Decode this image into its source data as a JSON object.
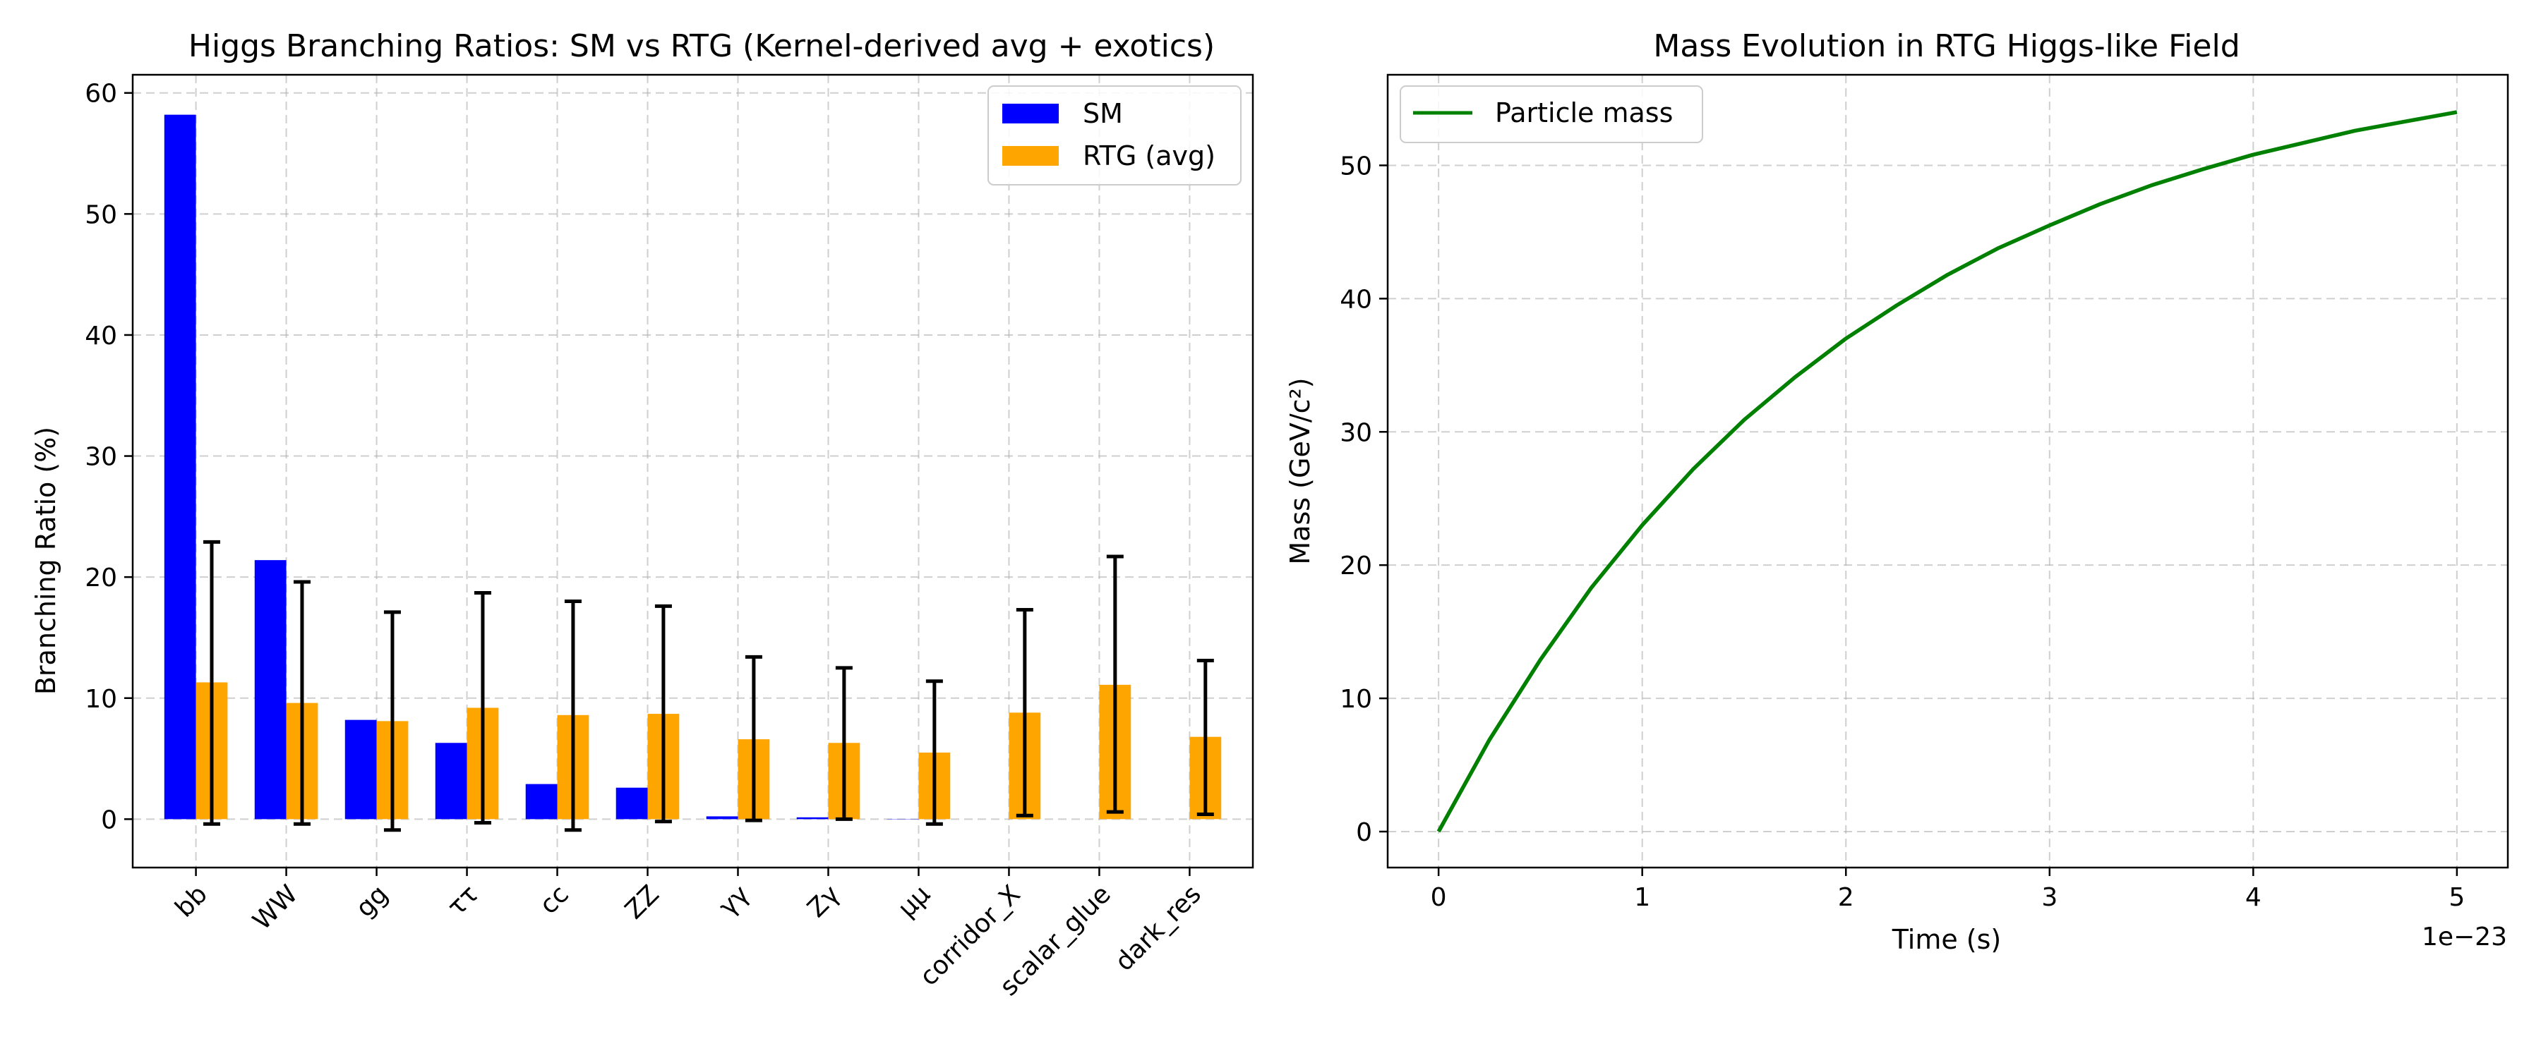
{
  "chart_data": [
    {
      "type": "bar",
      "title": "Higgs Branching Ratios: SM vs RTG (Kernel-derived avg + exotics)",
      "xlabel": "",
      "ylabel": "Branching Ratio (%)",
      "ylim": [
        -4,
        61.5
      ],
      "yticks": [
        0,
        10,
        20,
        30,
        40,
        50,
        60
      ],
      "categories": [
        "bb",
        "WW",
        "gg",
        "ττ",
        "cc",
        "ZZ",
        "γγ",
        "Zγ",
        "μμ",
        "corridor_X",
        "scalar_glue",
        "dark_res"
      ],
      "series": [
        {
          "name": "SM",
          "color": "#0000ff",
          "values": [
            58.2,
            21.4,
            8.2,
            6.3,
            2.9,
            2.6,
            0.23,
            0.15,
            0.02,
            0,
            0,
            0
          ]
        },
        {
          "name": "RTG (avg)",
          "color": "#ffa500",
          "values": [
            11.3,
            9.6,
            8.1,
            9.2,
            8.6,
            8.7,
            6.6,
            6.3,
            5.5,
            8.8,
            11.1,
            6.8
          ],
          "error_low": [
            -0.4,
            -0.4,
            -0.9,
            -0.3,
            -0.9,
            -0.2,
            -0.1,
            0.0,
            -0.4,
            0.3,
            0.6,
            0.4
          ],
          "error_high": [
            22.9,
            19.6,
            17.1,
            18.7,
            18.0,
            17.6,
            13.4,
            12.5,
            11.4,
            17.3,
            21.7,
            13.1
          ]
        }
      ],
      "grid": true,
      "legend": "top-right"
    },
    {
      "type": "line",
      "title": "Mass Evolution in RTG Higgs-like Field",
      "xlabel": "Time (s)",
      "ylabel": "Mass (GeV/c²)",
      "x_offset_label": "1e−23",
      "xlim": [
        -0.25,
        5.25
      ],
      "ylim": [
        -2.7,
        56.8
      ],
      "xticks": [
        0,
        1,
        2,
        3,
        4,
        5
      ],
      "yticks": [
        0,
        10,
        20,
        30,
        40,
        50
      ],
      "series": [
        {
          "name": "Particle mass",
          "color": "#008000",
          "x": [
            0,
            0.25,
            0.5,
            0.75,
            1.0,
            1.25,
            1.5,
            1.75,
            2.0,
            2.25,
            2.5,
            2.75,
            3.0,
            3.25,
            3.5,
            3.75,
            4.0,
            4.25,
            4.5,
            4.75,
            5.0
          ],
          "y": [
            0,
            6.9,
            12.9,
            18.3,
            23.0,
            27.2,
            30.9,
            34.1,
            37.0,
            39.5,
            41.8,
            43.8,
            45.5,
            47.1,
            48.5,
            49.7,
            50.8,
            51.7,
            52.6,
            53.3,
            54.0
          ]
        }
      ],
      "grid": true,
      "legend": "top-left"
    }
  ]
}
